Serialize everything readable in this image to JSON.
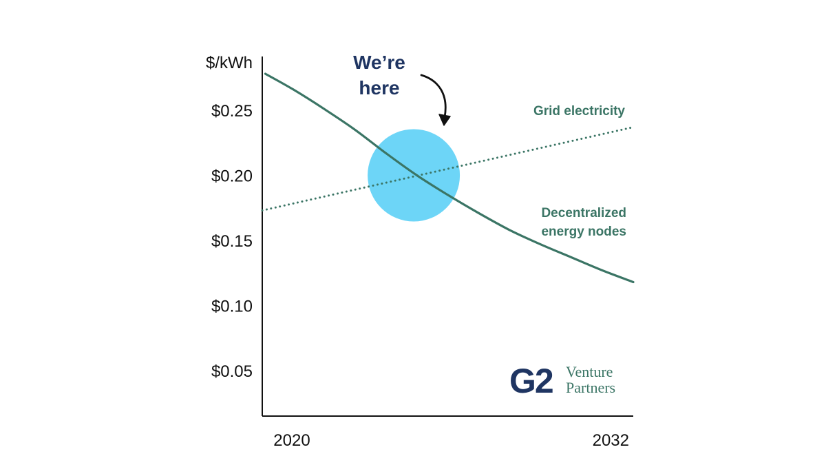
{
  "chart_data": {
    "type": "line",
    "ylabel": "$/kWh",
    "xlim": [
      2020,
      2032
    ],
    "ylim": [
      0.0,
      0.28
    ],
    "x_ticks": [
      "2020",
      "2032"
    ],
    "y_ticks": [
      {
        "value": 0.25,
        "label": "$0.25"
      },
      {
        "value": 0.2,
        "label": "$0.20"
      },
      {
        "value": 0.15,
        "label": "$0.15"
      },
      {
        "value": 0.1,
        "label": "$0.10"
      },
      {
        "value": 0.05,
        "label": "$0.05"
      }
    ],
    "series": [
      {
        "name": "Decentralized energy nodes",
        "label_lines": [
          "Decentralized",
          "energy nodes"
        ],
        "style": "solid",
        "x": [
          2020.1,
          2021,
          2022,
          2023,
          2024,
          2025,
          2026,
          2027,
          2028,
          2029,
          2030,
          2031,
          2032
        ],
        "y": [
          0.278,
          0.266,
          0.251,
          0.235,
          0.217,
          0.2,
          0.185,
          0.171,
          0.158,
          0.147,
          0.137,
          0.127,
          0.118
        ]
      },
      {
        "name": "Grid electricity",
        "label_lines": [
          "Grid electricity"
        ],
        "style": "dotted",
        "x": [
          2020,
          2032
        ],
        "y": [
          0.173,
          0.237
        ]
      }
    ],
    "highlight": {
      "x": 2024.9,
      "y": 0.2,
      "label_lines": [
        "We’re",
        "here"
      ]
    }
  },
  "logo": {
    "mark": "G2",
    "line1": "Venture",
    "line2": "Partners"
  },
  "colors": {
    "series": "#3b7565",
    "highlight": "#6dd5f7",
    "callout": "#1f3562",
    "logo": "#1f3562",
    "logo_text": "#3b7565",
    "axis": "#111111"
  }
}
